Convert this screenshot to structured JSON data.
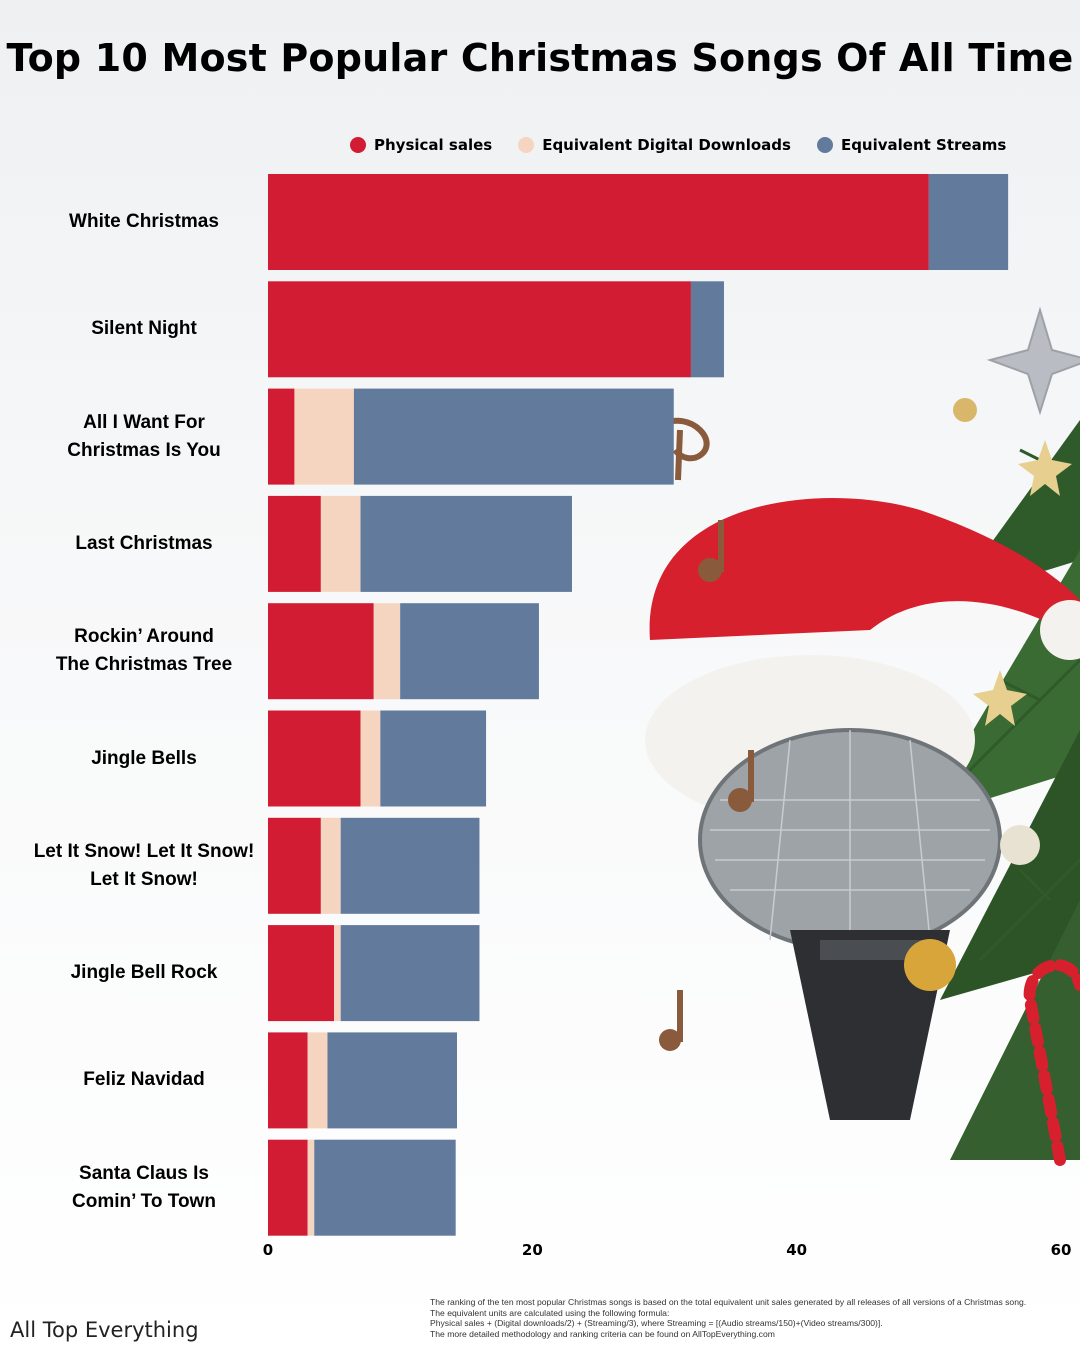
{
  "title": "Top 10 Most Popular Christmas Songs Of All Time",
  "legend": [
    {
      "label": "Physical sales",
      "color": "#d21c33"
    },
    {
      "label": "Equivalent Digital Downloads",
      "color": "#f5d5c0"
    },
    {
      "label": "Equivalent Streams",
      "color": "#627a9c"
    }
  ],
  "chart_data": {
    "type": "bar",
    "orientation": "horizontal",
    "stacked": true,
    "categories": [
      "White Christmas",
      "Silent Night",
      "All I Want For\nChristmas Is You",
      "Last Christmas",
      "Rockin’ Around\nThe Christmas Tree",
      "Jingle Bells",
      "Let It Snow! Let It Snow!\nLet It Snow!",
      "Jingle Bell Rock",
      "Feliz Navidad",
      "Santa Claus Is\nComin’ To Town"
    ],
    "series": [
      {
        "name": "Physical sales",
        "color": "#d21c33",
        "values": [
          50,
          32,
          2,
          4,
          8,
          7,
          4,
          5,
          3,
          3
        ]
      },
      {
        "name": "Equivalent Digital Downloads",
        "color": "#f5d5c0",
        "values": [
          0,
          0,
          4.5,
          3,
          2,
          1.5,
          1.5,
          0.5,
          1.5,
          0.5
        ]
      },
      {
        "name": "Equivalent Streams",
        "color": "#627a9c",
        "values": [
          6,
          2.5,
          24.2,
          16,
          10.5,
          8,
          10.5,
          10.5,
          9.8,
          10.7
        ]
      }
    ],
    "xticks": [
      0,
      20,
      40,
      60
    ],
    "xlim": [
      0,
      60
    ],
    "grid": false,
    "legend_position": "top"
  },
  "brand": "All Top Everything",
  "footnote": [
    "The ranking of the ten most popular Christmas songs is based on the total equivalent unit sales generated by all releases of all versions of a Christmas song.",
    "The equivalent units are calculated using the following formula:",
    "Physical sales + (Digital downloads/2) + (Streaming/3), where Streaming = [(Audio streams/150)+(Video streams/300)].",
    "The more detailed methodology and ranking criteria can be found on AllTopEverything.com"
  ]
}
